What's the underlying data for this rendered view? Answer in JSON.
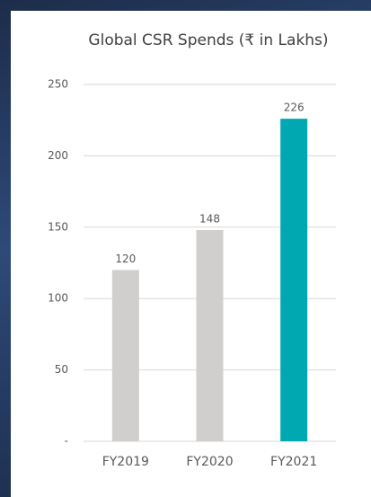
{
  "chart_data": {
    "type": "bar",
    "title": "Global CSR Spends (₹ in Lakhs)",
    "categories": [
      "FY2019",
      "FY2020",
      "FY2021"
    ],
    "values": [
      120,
      148,
      226
    ],
    "colors": [
      "#d0cfcd",
      "#d0cfcd",
      "#00a9b2"
    ],
    "ylim": [
      0,
      250
    ],
    "yticks": [
      {
        "value": 0,
        "label": "-"
      },
      50,
      100,
      150,
      200,
      250
    ],
    "grid": true
  }
}
